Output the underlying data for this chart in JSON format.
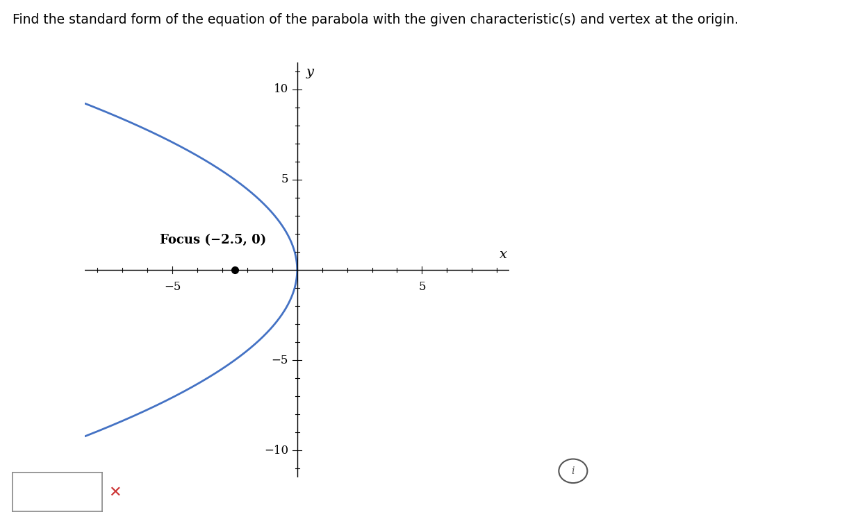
{
  "title": "Find the standard form of the equation of the parabola with the given characteristic(s) and vertex at the origin.",
  "focus": [
    -2.5,
    0
  ],
  "focus_label": "Focus (−2.5, 0)",
  "parabola_color": "#4472C4",
  "parabola_linewidth": 2.0,
  "axis_color": "#000000",
  "focus_dot_color": "#000000",
  "xlim": [
    -8.5,
    8.5
  ],
  "ylim": [
    -11.5,
    11.5
  ],
  "x_ticks_labeled": [
    -5,
    5
  ],
  "y_ticks_labeled": [
    10,
    5,
    -5,
    -10
  ],
  "x_label": "x",
  "y_label": "y",
  "p": -2.5,
  "bg_color": "#ffffff",
  "title_fontsize": 13.5,
  "tick_fontsize": 12,
  "axis_label_fontsize": 14,
  "focus_label_fontsize": 13
}
